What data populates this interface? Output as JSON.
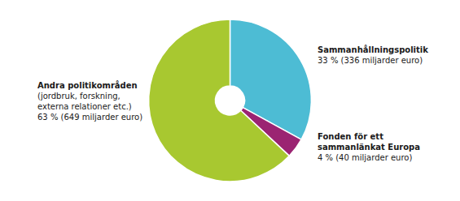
{
  "chart_data": {
    "type": "pie",
    "categories": [
      "Sammanhållningspolitik",
      "Fonden för ett\nsammanlänkat Europa",
      "Andra politikområden"
    ],
    "values": [
      33,
      4,
      63
    ],
    "value_labels": [
      "33 % (336 miljarder euro)",
      "4 % (40 miljarder euro)",
      "63 % (649 miljarder euro)"
    ],
    "colors": [
      "#4DBCD4",
      "#9B2472",
      "#A8C830"
    ],
    "annotations": [
      {
        "category": "Andra politikområden",
        "text": "(jordbruk, forskning,\nexterna relationer etc.)"
      }
    ]
  }
}
